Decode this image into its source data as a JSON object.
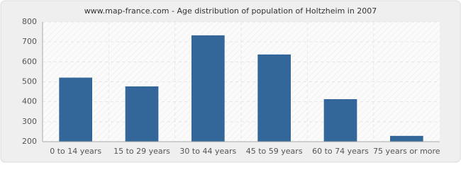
{
  "chart_data": {
    "type": "bar",
    "title": "www.map-france.com - Age distribution of population of Holtzheim in 2007",
    "categories": [
      "0 to 14 years",
      "15 to 29 years",
      "30 to 44 years",
      "45 to 59 years",
      "60 to 74 years",
      "75 years or more"
    ],
    "values": [
      521,
      477,
      733,
      637,
      413,
      229
    ],
    "color": "#336699",
    "ylim": [
      200,
      800
    ],
    "yticks": [
      200,
      300,
      400,
      500,
      600,
      700,
      800
    ],
    "grid": true
  }
}
